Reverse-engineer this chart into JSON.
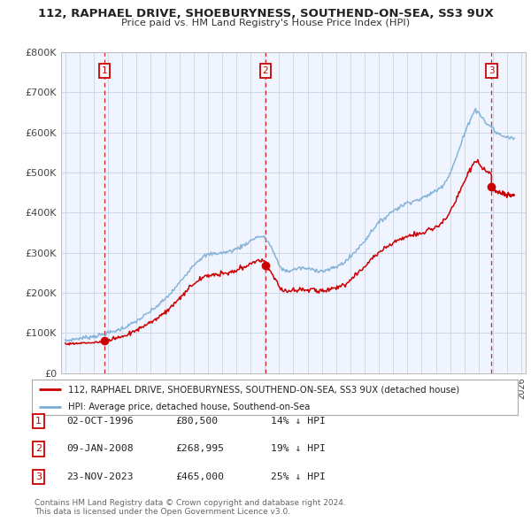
{
  "title": "112, RAPHAEL DRIVE, SHOEBURYNESS, SOUTHEND-ON-SEA, SS3 9UX",
  "subtitle": "Price paid vs. HM Land Registry's House Price Index (HPI)",
  "background_color": "#ffffff",
  "plot_bg_color": "#f0f4ff",
  "grid_color": "#c8d4e8",
  "red_line_color": "#cc0000",
  "blue_line_color": "#7aadd4",
  "sale_marker_color": "#cc0000",
  "annotation_box_color": "#cc0000",
  "dashed_line_color": "#cc0000",
  "xmin": 1993.7,
  "xmax": 2026.3,
  "ymin": 0,
  "ymax": 800000,
  "yticks": [
    0,
    100000,
    200000,
    300000,
    400000,
    500000,
    600000,
    700000,
    800000
  ],
  "ytick_labels": [
    "£0",
    "£100K",
    "£200K",
    "£300K",
    "£400K",
    "£500K",
    "£600K",
    "£700K",
    "£800K"
  ],
  "xticks": [
    1994,
    1995,
    1996,
    1997,
    1998,
    1999,
    2000,
    2001,
    2002,
    2003,
    2004,
    2005,
    2006,
    2007,
    2008,
    2009,
    2010,
    2011,
    2012,
    2013,
    2014,
    2015,
    2016,
    2017,
    2018,
    2019,
    2020,
    2021,
    2022,
    2023,
    2024,
    2025,
    2026
  ],
  "sale1_x": 1996.75,
  "sale1_y": 80500,
  "sale1_label": "1",
  "sale2_x": 2008.03,
  "sale2_y": 268995,
  "sale2_label": "2",
  "sale3_x": 2023.9,
  "sale3_y": 465000,
  "sale3_label": "3",
  "legend_line1": "112, RAPHAEL DRIVE, SHOEBURYNESS, SOUTHEND-ON-SEA, SS3 9UX (detached house)",
  "legend_line2": "HPI: Average price, detached house, Southend-on-Sea",
  "table_rows": [
    {
      "num": "1",
      "date": "02-OCT-1996",
      "price": "£80,500",
      "hpi": "14% ↓ HPI"
    },
    {
      "num": "2",
      "date": "09-JAN-2008",
      "price": "£268,995",
      "hpi": "19% ↓ HPI"
    },
    {
      "num": "3",
      "date": "23-NOV-2023",
      "price": "£465,000",
      "hpi": "25% ↓ HPI"
    }
  ],
  "footnote": "Contains HM Land Registry data © Crown copyright and database right 2024.\nThis data is licensed under the Open Government Licence v3.0."
}
